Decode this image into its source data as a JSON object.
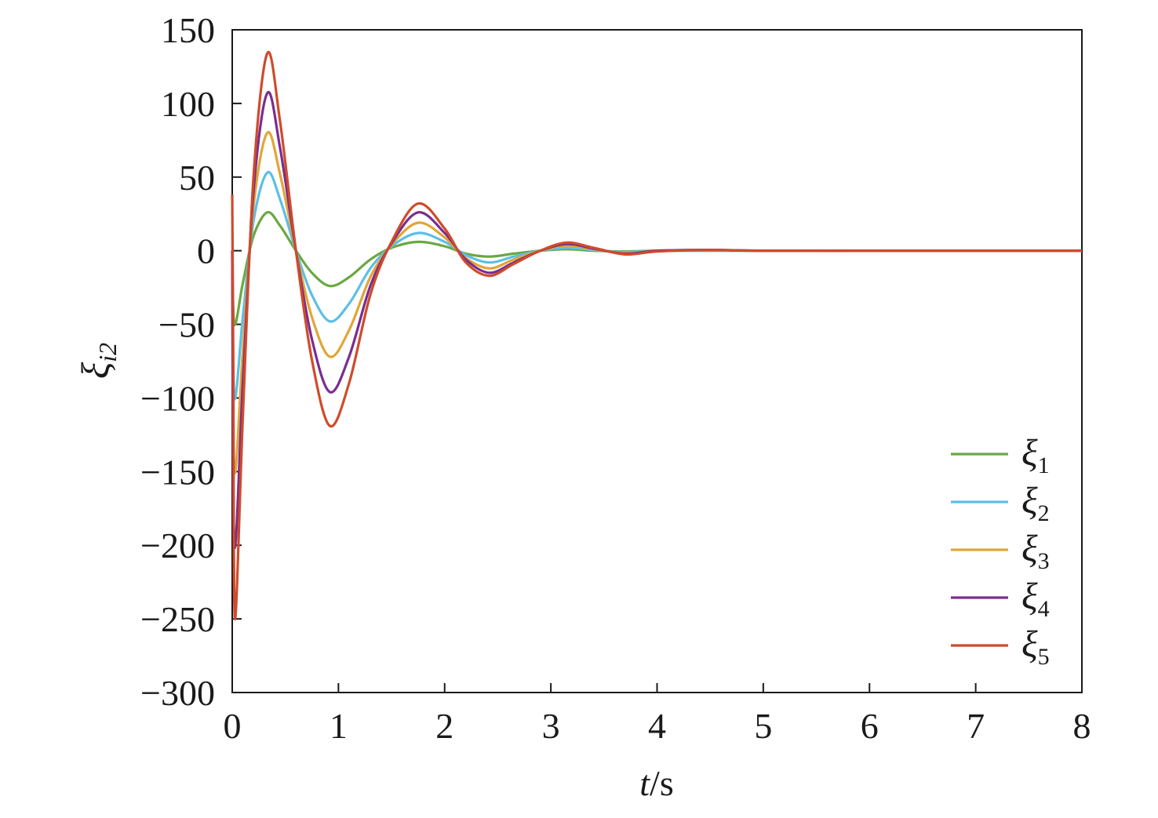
{
  "chart_data": {
    "type": "line",
    "xlabel": {
      "var": "t",
      "unit": "/s"
    },
    "ylabel": {
      "base": "ξ",
      "sub": "i2"
    },
    "xlim": [
      0,
      8
    ],
    "ylim": [
      -300,
      150
    ],
    "xticks": [
      0,
      1,
      2,
      3,
      4,
      5,
      6,
      7,
      8
    ],
    "yticks": [
      150,
      100,
      50,
      0,
      -50,
      -100,
      -150,
      -200,
      -250,
      -300
    ],
    "grid": false,
    "legend_position": "lower-right",
    "series": [
      {
        "name": "ξ1",
        "base": "ξ",
        "sub": "1",
        "color": "#6aa842",
        "points": [
          [
            0,
            0
          ],
          [
            0.02,
            -50
          ],
          [
            0.1,
            -22
          ],
          [
            0.2,
            10
          ],
          [
            0.33,
            26
          ],
          [
            0.45,
            17
          ],
          [
            0.6,
            0
          ],
          [
            0.75,
            -15
          ],
          [
            0.92,
            -24
          ],
          [
            1.1,
            -18
          ],
          [
            1.3,
            -6
          ],
          [
            1.5,
            2
          ],
          [
            1.75,
            6
          ],
          [
            2.0,
            3
          ],
          [
            2.2,
            -2
          ],
          [
            2.42,
            -4
          ],
          [
            2.65,
            -2
          ],
          [
            2.9,
            0
          ],
          [
            3.15,
            1
          ],
          [
            3.4,
            0
          ],
          [
            3.7,
            -0.5
          ],
          [
            4.0,
            0
          ],
          [
            4.5,
            0
          ],
          [
            5,
            0
          ],
          [
            6,
            0
          ],
          [
            7,
            0
          ],
          [
            8,
            0
          ]
        ]
      },
      {
        "name": "ξ2",
        "base": "ξ",
        "sub": "2",
        "color": "#5cbfe6",
        "points": [
          [
            0,
            0
          ],
          [
            0.02,
            -100
          ],
          [
            0.1,
            -45
          ],
          [
            0.2,
            20
          ],
          [
            0.33,
            53
          ],
          [
            0.45,
            35
          ],
          [
            0.6,
            0
          ],
          [
            0.75,
            -30
          ],
          [
            0.92,
            -48
          ],
          [
            1.1,
            -36
          ],
          [
            1.3,
            -12
          ],
          [
            1.5,
            3
          ],
          [
            1.75,
            12
          ],
          [
            2.0,
            6
          ],
          [
            2.2,
            -3
          ],
          [
            2.42,
            -8
          ],
          [
            2.65,
            -4
          ],
          [
            2.9,
            0
          ],
          [
            3.15,
            2
          ],
          [
            3.4,
            0.5
          ],
          [
            3.7,
            -1
          ],
          [
            4.0,
            0
          ],
          [
            4.5,
            0
          ],
          [
            5,
            0
          ],
          [
            6,
            0
          ],
          [
            7,
            0
          ],
          [
            8,
            0
          ]
        ]
      },
      {
        "name": "ξ3",
        "base": "ξ",
        "sub": "3",
        "color": "#e0a637",
        "points": [
          [
            0,
            0
          ],
          [
            0.02,
            -150
          ],
          [
            0.1,
            -68
          ],
          [
            0.2,
            30
          ],
          [
            0.33,
            80
          ],
          [
            0.45,
            52
          ],
          [
            0.6,
            0
          ],
          [
            0.75,
            -45
          ],
          [
            0.92,
            -72
          ],
          [
            1.1,
            -54
          ],
          [
            1.3,
            -18
          ],
          [
            1.5,
            4
          ],
          [
            1.75,
            19
          ],
          [
            2.0,
            9
          ],
          [
            2.2,
            -5
          ],
          [
            2.42,
            -12
          ],
          [
            2.65,
            -6
          ],
          [
            2.9,
            0
          ],
          [
            3.15,
            3.5
          ],
          [
            3.4,
            1
          ],
          [
            3.7,
            -1.5
          ],
          [
            4.0,
            0
          ],
          [
            4.5,
            0.5
          ],
          [
            5,
            0
          ],
          [
            6,
            0
          ],
          [
            7,
            0
          ],
          [
            8,
            0
          ]
        ]
      },
      {
        "name": "ξ4",
        "base": "ξ",
        "sub": "4",
        "color": "#7a2d8f",
        "points": [
          [
            0,
            0
          ],
          [
            0.02,
            -200
          ],
          [
            0.1,
            -90
          ],
          [
            0.2,
            40
          ],
          [
            0.33,
            107
          ],
          [
            0.45,
            70
          ],
          [
            0.6,
            0
          ],
          [
            0.75,
            -60
          ],
          [
            0.92,
            -96
          ],
          [
            1.1,
            -72
          ],
          [
            1.3,
            -24
          ],
          [
            1.5,
            5
          ],
          [
            1.75,
            26
          ],
          [
            2.0,
            12
          ],
          [
            2.2,
            -6
          ],
          [
            2.42,
            -15
          ],
          [
            2.65,
            -8
          ],
          [
            2.9,
            0
          ],
          [
            3.15,
            4.5
          ],
          [
            3.4,
            1.5
          ],
          [
            3.7,
            -2
          ],
          [
            4.0,
            0
          ],
          [
            4.5,
            0.5
          ],
          [
            5,
            0
          ],
          [
            6,
            0
          ],
          [
            7,
            0
          ],
          [
            8,
            0
          ]
        ]
      },
      {
        "name": "ξ5",
        "base": "ξ",
        "sub": "5",
        "color": "#cf4b2b",
        "points": [
          [
            0,
            38
          ],
          [
            0.01,
            -80
          ],
          [
            0.025,
            -250
          ],
          [
            0.1,
            -113
          ],
          [
            0.2,
            50
          ],
          [
            0.33,
            134
          ],
          [
            0.45,
            88
          ],
          [
            0.6,
            0
          ],
          [
            0.75,
            -74
          ],
          [
            0.92,
            -119
          ],
          [
            1.1,
            -90
          ],
          [
            1.3,
            -30
          ],
          [
            1.5,
            6
          ],
          [
            1.75,
            32
          ],
          [
            2.0,
            15
          ],
          [
            2.2,
            -8
          ],
          [
            2.42,
            -17
          ],
          [
            2.65,
            -9
          ],
          [
            2.9,
            0
          ],
          [
            3.15,
            5.5
          ],
          [
            3.4,
            2
          ],
          [
            3.7,
            -2.5
          ],
          [
            4.0,
            -0.5
          ],
          [
            4.5,
            0.5
          ],
          [
            5,
            0
          ],
          [
            6,
            0
          ],
          [
            7,
            0
          ],
          [
            8,
            0
          ]
        ]
      }
    ]
  }
}
